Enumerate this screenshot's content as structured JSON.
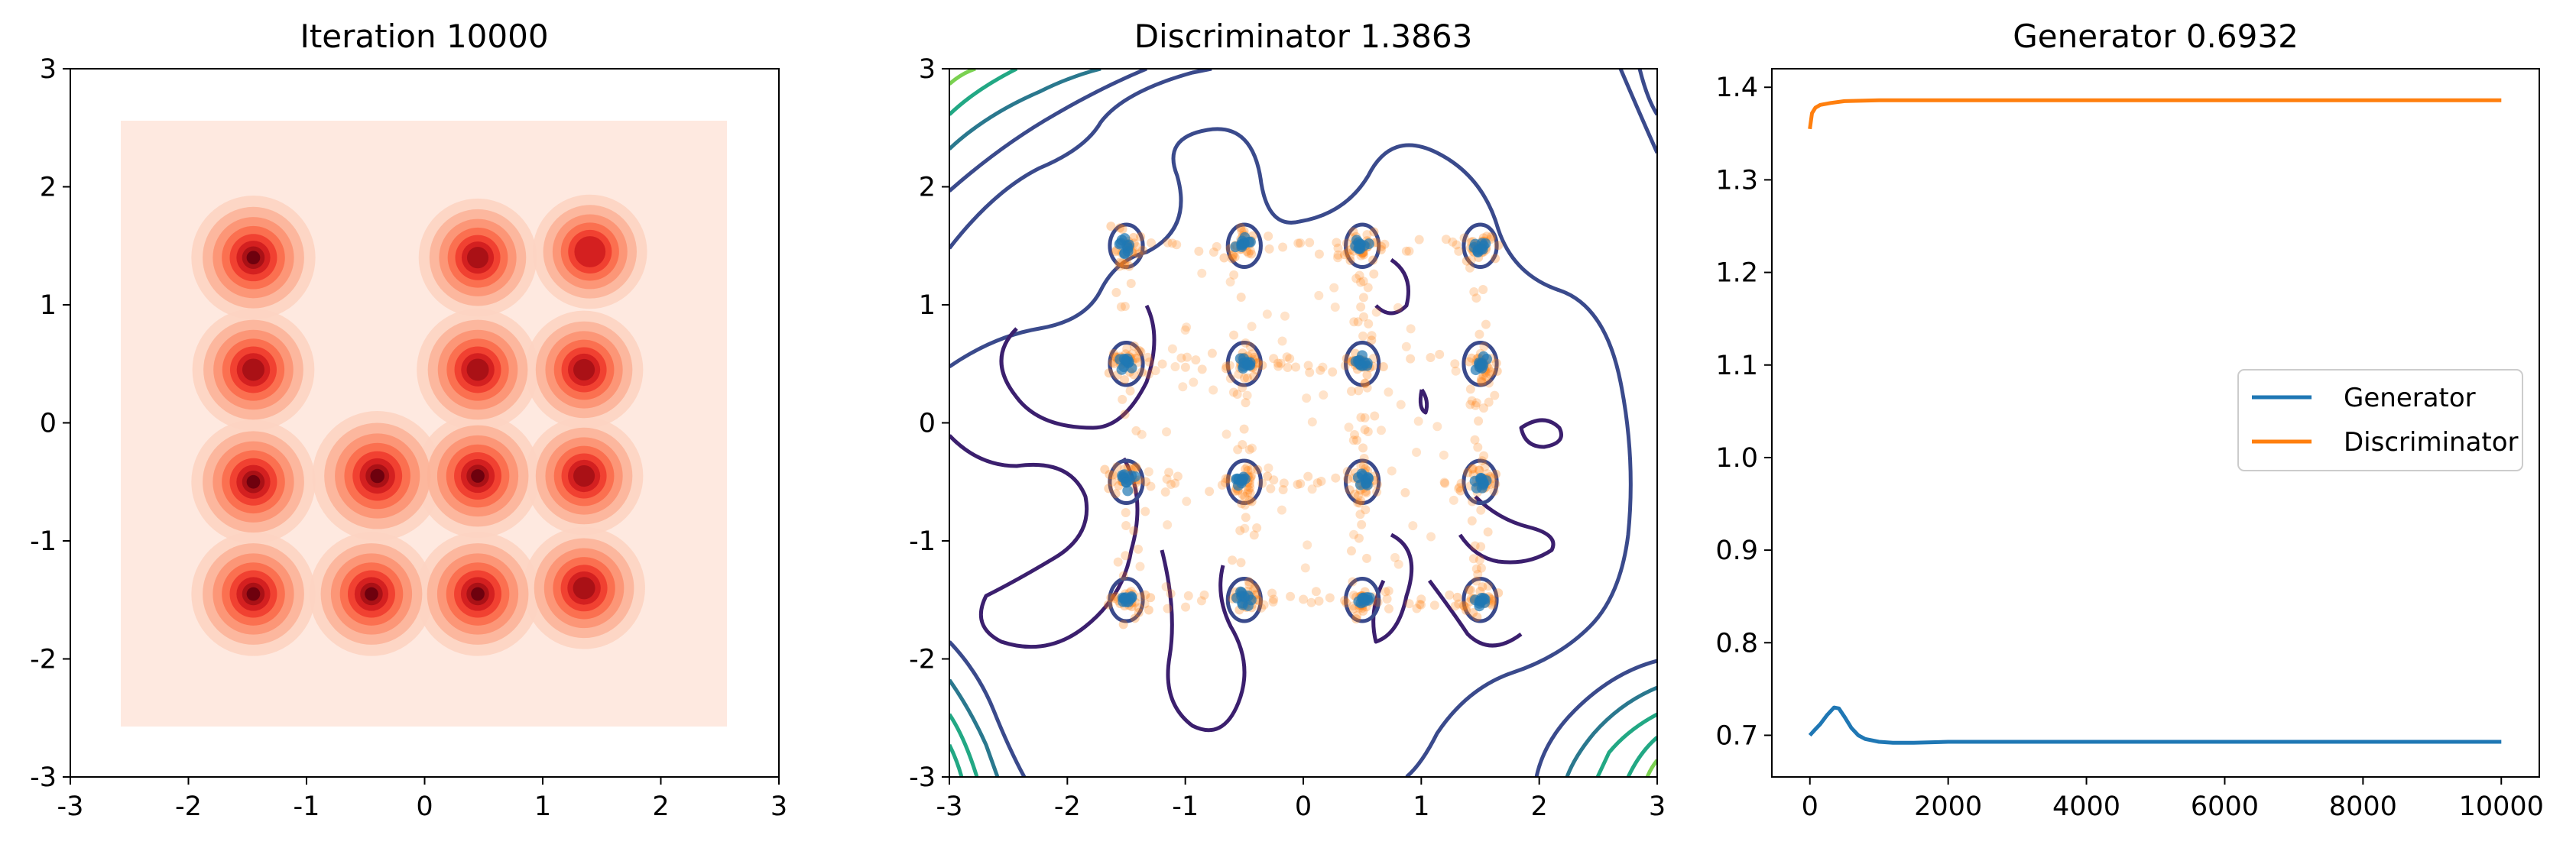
{
  "chart_data": [
    {
      "type": "heatmap",
      "title": "Iteration 10000",
      "xlim": [
        -3,
        3
      ],
      "ylim": [
        -3,
        3
      ],
      "x_ticks": [
        "-3",
        "-2",
        "-1",
        "0",
        "1",
        "2",
        "3"
      ],
      "y_ticks": [
        "-3",
        "-2",
        "-1",
        "0",
        "1",
        "2",
        "3"
      ],
      "colormap": "Reds",
      "support_range": [
        -2.55,
        2.55
      ],
      "modes": [
        {
          "x": -1.45,
          "y": 1.4,
          "level": 0.85
        },
        {
          "x": -1.45,
          "y": 0.45,
          "level": 0.8
        },
        {
          "x": -1.45,
          "y": -0.5,
          "level": 0.85
        },
        {
          "x": -1.45,
          "y": -1.45,
          "level": 0.85
        },
        {
          "x": -0.4,
          "y": -0.45,
          "level": 1.0
        },
        {
          "x": -0.45,
          "y": -1.45,
          "level": 0.85
        },
        {
          "x": 0.45,
          "y": 1.4,
          "level": 0.7
        },
        {
          "x": 0.45,
          "y": 0.45,
          "level": 0.8
        },
        {
          "x": 0.45,
          "y": -0.45,
          "level": 0.85
        },
        {
          "x": 0.45,
          "y": -1.45,
          "level": 0.85
        },
        {
          "x": 1.4,
          "y": 1.45,
          "level": 0.6
        },
        {
          "x": 1.35,
          "y": 0.45,
          "level": 0.7
        },
        {
          "x": 1.35,
          "y": -0.45,
          "level": 0.7
        },
        {
          "x": 1.35,
          "y": -1.4,
          "level": 0.8
        }
      ]
    },
    {
      "type": "scatter",
      "title": "Discriminator 1.3863",
      "xlim": [
        -3,
        3
      ],
      "ylim": [
        -3,
        3
      ],
      "x_ticks": [
        "-3",
        "-2",
        "-1",
        "0",
        "1",
        "2",
        "3"
      ],
      "y_ticks": [
        "-3",
        "-2",
        "-1",
        "0",
        "1",
        "2",
        "3"
      ],
      "real_centers_x": [
        -1.5,
        -0.5,
        0.5,
        1.5
      ],
      "real_centers_y": [
        -1.5,
        -0.5,
        0.5,
        1.5
      ],
      "real_color": "#1f77b4",
      "fake_color": "#ff7f0e",
      "contour_colors": [
        "#3b1f6e",
        "#3a4a8c",
        "#2a788e",
        "#22a884",
        "#7ad151"
      ]
    },
    {
      "type": "line",
      "title": "Generator 0.6932",
      "xlim": [
        -550,
        10550
      ],
      "ylim": [
        0.655,
        1.42
      ],
      "x_ticks": [
        0,
        2000,
        4000,
        6000,
        8000,
        10000
      ],
      "y_ticks": [
        "0.7",
        "0.8",
        "0.9",
        "1.0",
        "1.1",
        "1.2",
        "1.3",
        "1.4"
      ],
      "legend_position": "center-right",
      "series": [
        {
          "name": "Generator",
          "color": "#1f77b4",
          "x": [
            0,
            60,
            150,
            250,
            350,
            420,
            500,
            600,
            700,
            800,
            1000,
            1200,
            1500,
            2000,
            3000,
            4000,
            6000,
            8000,
            10000
          ],
          "y": [
            0.7,
            0.705,
            0.712,
            0.722,
            0.73,
            0.729,
            0.72,
            0.708,
            0.7,
            0.696,
            0.693,
            0.692,
            0.692,
            0.693,
            0.693,
            0.693,
            0.693,
            0.693,
            0.693
          ]
        },
        {
          "name": "Discriminator",
          "color": "#ff7f0e",
          "x": [
            0,
            30,
            80,
            150,
            300,
            500,
            1000,
            2000,
            4000,
            6000,
            8000,
            10000
          ],
          "y": [
            1.355,
            1.372,
            1.378,
            1.381,
            1.383,
            1.385,
            1.386,
            1.386,
            1.386,
            1.386,
            1.386,
            1.386
          ]
        }
      ]
    }
  ]
}
